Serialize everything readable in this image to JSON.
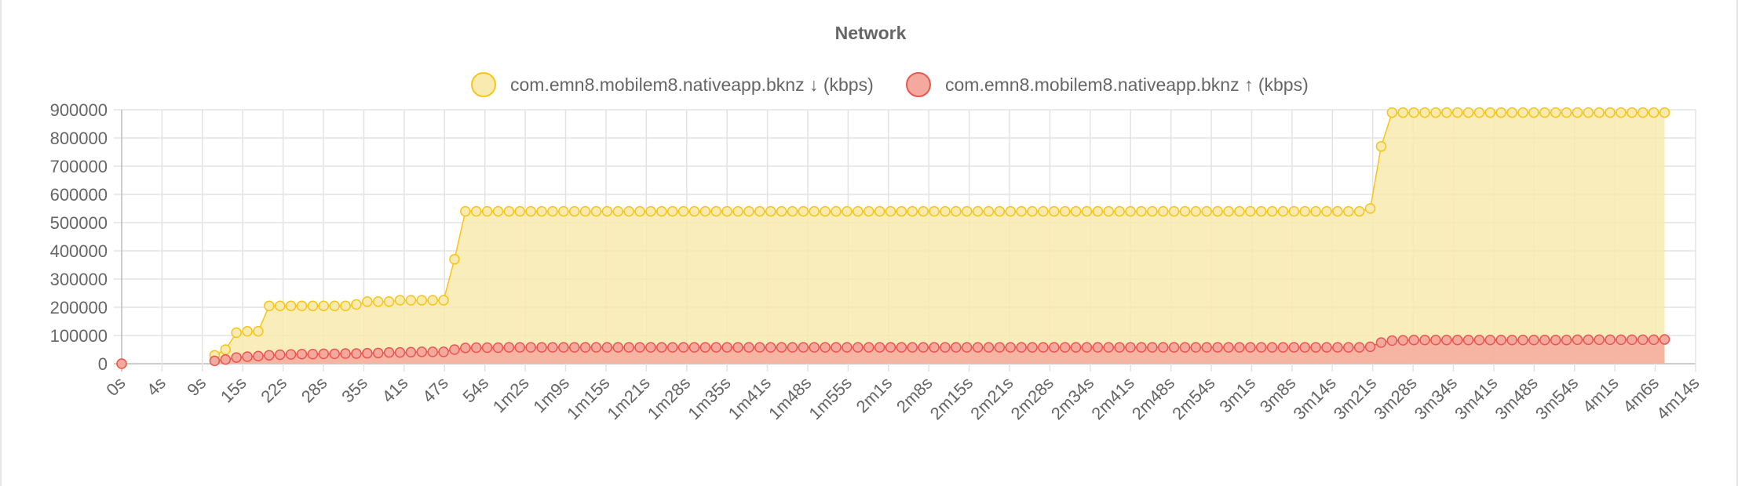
{
  "chart_data": {
    "type": "area",
    "title": "Network",
    "xlabel": "",
    "ylabel": "",
    "ylim": [
      0,
      900000
    ],
    "xlim": [
      0,
      254
    ],
    "yticks": [
      0,
      100000,
      200000,
      300000,
      400000,
      500000,
      600000,
      700000,
      800000,
      900000
    ],
    "x_tick_labels": [
      "0s",
      "4s",
      "9s",
      "15s",
      "22s",
      "28s",
      "35s",
      "41s",
      "47s",
      "54s",
      "1m2s",
      "1m9s",
      "1m15s",
      "1m21s",
      "1m28s",
      "1m35s",
      "1m41s",
      "1m48s",
      "1m55s",
      "2m1s",
      "2m8s",
      "2m15s",
      "2m21s",
      "2m28s",
      "2m34s",
      "2m41s",
      "2m48s",
      "2m54s",
      "3m1s",
      "3m8s",
      "3m14s",
      "3m21s",
      "3m28s",
      "3m34s",
      "3m41s",
      "3m48s",
      "3m54s",
      "4m1s",
      "4m6s",
      "4m14s"
    ],
    "grid": true,
    "legend_position": "top",
    "series": [
      {
        "name": "com.emn8.mobilem8.nativeapp.bknz ↓ (kbps)",
        "color": "#f5c518",
        "fill": "#f9eab0",
        "segments": [
          {
            "x_start": 0,
            "x_end": 0,
            "values": [
              0
            ]
          },
          {
            "x_start": 15,
            "x_end": 249,
            "values": [
              30000,
              50000,
              110000,
              115000,
              115000,
              205000,
              205000,
              205000,
              205000,
              205000,
              205000,
              205000,
              205000,
              210000,
              220000,
              220000,
              220000,
              225000,
              225000,
              225000,
              225000,
              225000,
              370000,
              540000,
              540000,
              540000,
              540000,
              540000,
              540000,
              540000,
              540000,
              540000,
              540000,
              540000,
              540000,
              540000,
              540000,
              540000,
              540000,
              540000,
              540000,
              540000,
              540000,
              540000,
              540000,
              540000,
              540000,
              540000,
              540000,
              540000,
              540000,
              540000,
              540000,
              540000,
              540000,
              540000,
              540000,
              540000,
              540000,
              540000,
              540000,
              540000,
              540000,
              540000,
              540000,
              540000,
              540000,
              540000,
              540000,
              540000,
              540000,
              540000,
              540000,
              540000,
              540000,
              540000,
              540000,
              540000,
              540000,
              540000,
              540000,
              540000,
              540000,
              540000,
              540000,
              540000,
              540000,
              540000,
              540000,
              540000,
              540000,
              540000,
              540000,
              540000,
              540000,
              540000,
              540000,
              540000,
              540000,
              540000,
              540000,
              540000,
              540000,
              540000,
              540000,
              540000,
              550000,
              770000,
              890000,
              890000,
              890000,
              890000,
              890000,
              890000,
              890000,
              890000,
              890000,
              890000,
              890000,
              890000,
              890000,
              890000,
              890000,
              890000,
              890000,
              890000,
              890000,
              890000,
              890000,
              890000,
              890000,
              890000,
              890000,
              890000
            ]
          }
        ]
      },
      {
        "name": "com.emn8.mobilem8.nativeapp.bknz ↑ (kbps)",
        "color": "#e8574f",
        "fill": "#f4a99e",
        "segments": [
          {
            "x_start": 0,
            "x_end": 0,
            "values": [
              0
            ]
          },
          {
            "x_start": 15,
            "x_end": 249,
            "values": [
              10000,
              15000,
              22000,
              25000,
              27000,
              30000,
              32000,
              33000,
              34000,
              34000,
              35000,
              35000,
              36000,
              36000,
              37000,
              38000,
              40000,
              40000,
              41000,
              42000,
              42000,
              42000,
              50000,
              56000,
              57000,
              57000,
              57000,
              58000,
              58000,
              58000,
              58000,
              58000,
              58000,
              58000,
              58000,
              58000,
              58000,
              58000,
              58000,
              58000,
              58000,
              58000,
              58000,
              58000,
              58000,
              58000,
              58000,
              58000,
              58000,
              58000,
              58000,
              58000,
              58000,
              58000,
              58000,
              58000,
              58000,
              58000,
              58000,
              58000,
              58000,
              58000,
              58000,
              58000,
              58000,
              58000,
              58000,
              58000,
              58000,
              58000,
              58000,
              58000,
              58000,
              58000,
              58000,
              58000,
              58000,
              58000,
              58000,
              58000,
              58000,
              58000,
              58000,
              58000,
              58000,
              58000,
              58000,
              58000,
              58000,
              58000,
              58000,
              58000,
              58000,
              58000,
              58000,
              58000,
              58000,
              58000,
              58000,
              58000,
              58000,
              58000,
              58000,
              58000,
              58000,
              58000,
              60000,
              75000,
              82000,
              83000,
              84000,
              84000,
              84000,
              84000,
              84000,
              84000,
              84000,
              84000,
              84000,
              84000,
              84000,
              84000,
              84000,
              84000,
              84000,
              85000,
              85000,
              85000,
              85000,
              85000,
              85000,
              85000,
              85000,
              86000
            ]
          }
        ]
      }
    ]
  }
}
